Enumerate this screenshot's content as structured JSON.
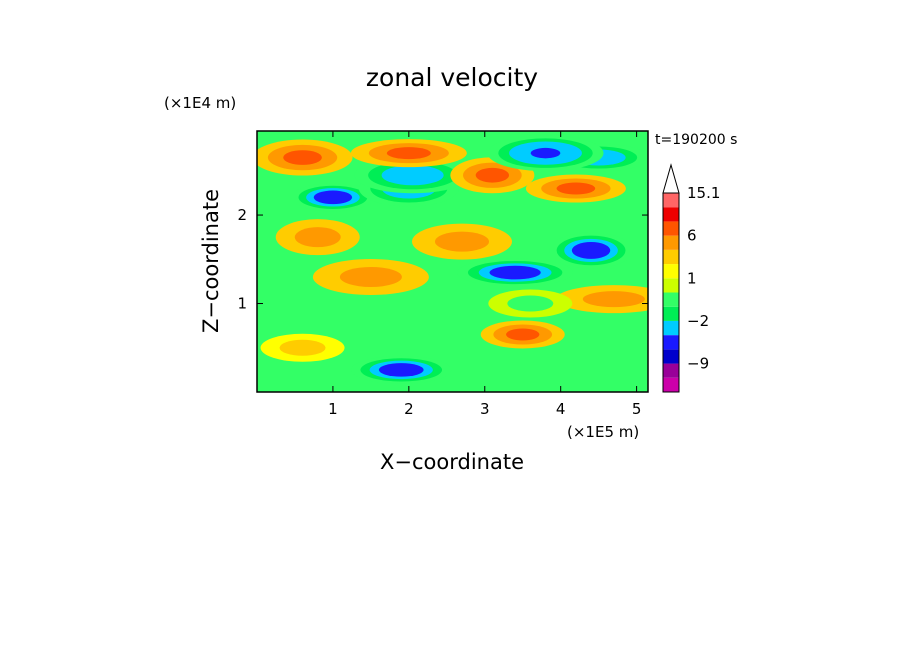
{
  "chart_data": {
    "type": "heatmap",
    "title": "zonal velocity",
    "xlabel": "X−coordinate",
    "ylabel": "Z−coordinate",
    "x_unit": "(×1E5 m)",
    "y_unit": "(×1E4 m)",
    "time_label": "t=190200 s",
    "xlim": [
      0,
      5.15
    ],
    "ylim": [
      0,
      2.95
    ],
    "x_ticks": [
      "1",
      "2",
      "3",
      "4",
      "5"
    ],
    "y_ticks": [
      "1",
      "2"
    ],
    "colorbar_labels": [
      "15.1",
      "6",
      "1",
      "−2",
      "−9"
    ],
    "colorbar_levels": [
      -15,
      -12,
      -9,
      -6,
      -4,
      -2,
      -1,
      0,
      1,
      2,
      4,
      6,
      9,
      12,
      15.1
    ],
    "colors": [
      "#ff00cc",
      "#cc00aa",
      "#990099",
      "#0000cc",
      "#1a1aff",
      "#00ccff",
      "#00ee55",
      "#33ff66",
      "#ccff00",
      "#ffff00",
      "#ffcc00",
      "#ff9900",
      "#ff5500",
      "#ee0000",
      "#ff6666",
      "#ff9999",
      "#ffcccc"
    ],
    "features": [
      {
        "x": 1.0,
        "z": 2.2,
        "value": -8
      },
      {
        "x": 2.0,
        "z": 2.3,
        "value": -6
      },
      {
        "x": 3.4,
        "z": 1.35,
        "value": -8
      },
      {
        "x": 4.4,
        "z": 1.6,
        "value": -8
      },
      {
        "x": 4.5,
        "z": 2.65,
        "value": -6
      },
      {
        "x": 2.05,
        "z": 2.45,
        "value": -6
      },
      {
        "x": 3.5,
        "z": 0.65,
        "value": 4
      },
      {
        "x": 0.6,
        "z": 2.65,
        "value": 4
      },
      {
        "x": 2.0,
        "z": 2.7,
        "value": 4
      },
      {
        "x": 3.1,
        "z": 2.45,
        "value": 4
      },
      {
        "x": 4.2,
        "z": 2.3,
        "value": 4
      },
      {
        "x": 1.5,
        "z": 1.3,
        "value": 2
      },
      {
        "x": 0.6,
        "z": 0.5,
        "value": 1
      },
      {
        "x": 2.7,
        "z": 1.7,
        "value": 2
      },
      {
        "x": 4.7,
        "z": 1.05,
        "value": 2
      },
      {
        "x": 0.8,
        "z": 1.75,
        "value": 2
      },
      {
        "x": 1.9,
        "z": 0.25,
        "value": -8
      },
      {
        "x": 3.8,
        "z": 2.7,
        "value": -7
      },
      {
        "x": 3.6,
        "z": 1.0,
        "value": -2
      }
    ]
  }
}
